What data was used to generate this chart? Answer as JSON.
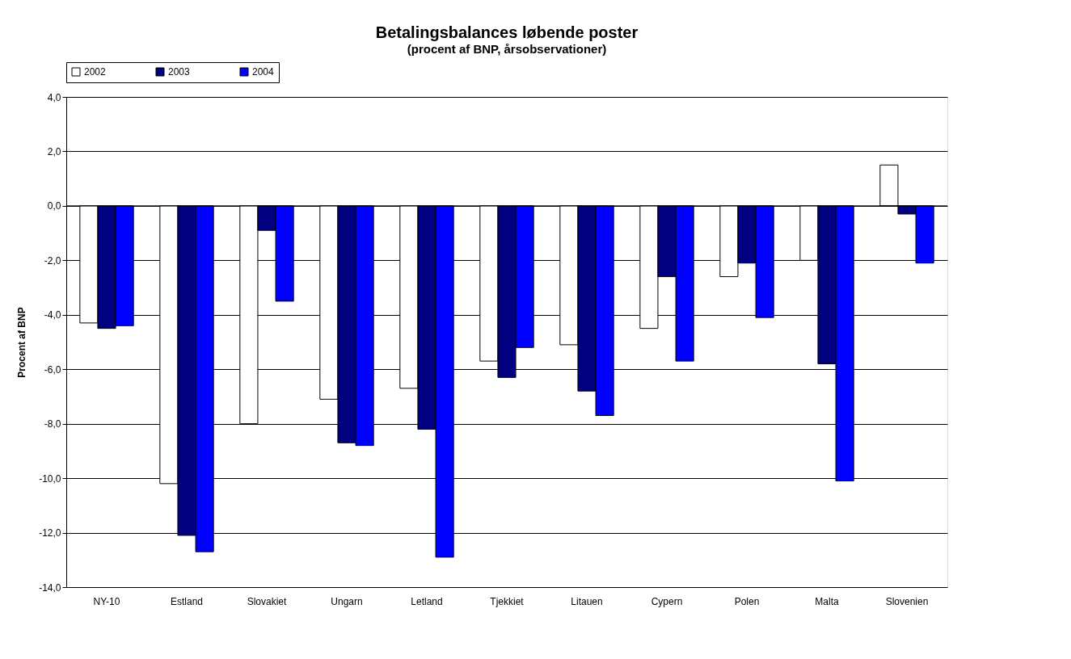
{
  "chart_data": {
    "type": "bar",
    "title": "Betalingsbalances løbende poster",
    "subtitle": "(procent af BNP, årsobservationer)",
    "ylabel": "Procent af BNP",
    "categories": [
      "NY-10",
      "Estland",
      "Slovakiet",
      "Ungarn",
      "Letland",
      "Tjekkiet",
      "Litauen",
      "Cypern",
      "Polen",
      "Malta",
      "Slovenien"
    ],
    "series": [
      {
        "name": "2002",
        "color": "#ffffff",
        "values": [
          -4.3,
          -10.2,
          -8.0,
          -7.1,
          -6.7,
          -5.7,
          -5.1,
          -4.5,
          -2.6,
          -2.0,
          1.5
        ]
      },
      {
        "name": "2003",
        "color": "#000080",
        "values": [
          -4.5,
          -12.1,
          -0.9,
          -8.7,
          -8.2,
          -6.3,
          -6.8,
          -2.6,
          -2.1,
          -5.8,
          -0.3
        ]
      },
      {
        "name": "2004",
        "color": "#0000ff",
        "values": [
          -4.4,
          -12.7,
          -3.5,
          -8.8,
          -12.9,
          -5.2,
          -7.7,
          -5.7,
          -4.1,
          -10.1,
          -2.1
        ]
      }
    ],
    "ylim": [
      -14,
      4
    ],
    "yticks": [
      {
        "value": -14,
        "label": "-14,0"
      },
      {
        "value": -12,
        "label": "-12,0"
      },
      {
        "value": -10,
        "label": "-10,0"
      },
      {
        "value": -8,
        "label": "-8,0"
      },
      {
        "value": -6,
        "label": "-6,0"
      },
      {
        "value": -4,
        "label": "-4,0"
      },
      {
        "value": -2,
        "label": "-2,0"
      },
      {
        "value": 0,
        "label": "0,0"
      },
      {
        "value": 2,
        "label": "2,0"
      },
      {
        "value": 4,
        "label": "4,0"
      }
    ],
    "grid": "y",
    "legend": "top"
  }
}
